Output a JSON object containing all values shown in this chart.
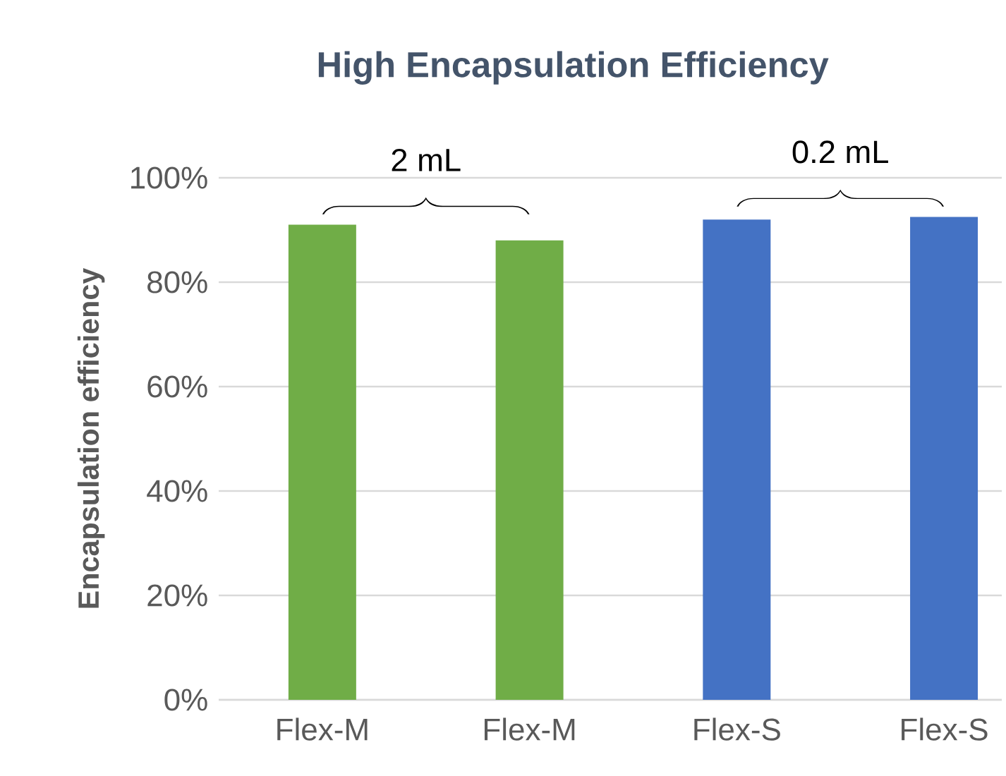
{
  "chart_data": {
    "type": "bar",
    "title": "High Encapsulation Efficiency",
    "ylabel": "Encapsulation efficiency",
    "categories": [
      "Flex-M",
      "Flex-M",
      "Flex-S",
      "Flex-S"
    ],
    "values": [
      91,
      88,
      92,
      92.5
    ],
    "colors": [
      "#70ad47",
      "#70ad47",
      "#4472c4",
      "#4472c4"
    ],
    "ylim": [
      0,
      100
    ],
    "yticks": [
      {
        "value": 0,
        "label": "0%"
      },
      {
        "value": 20,
        "label": "20%"
      },
      {
        "value": 40,
        "label": "40%"
      },
      {
        "value": 60,
        "label": "60%"
      },
      {
        "value": 80,
        "label": "80%"
      },
      {
        "value": 100,
        "label": "100%"
      }
    ],
    "grid": "y",
    "annotations": [
      "2 mL",
      "0.2 mL"
    ]
  }
}
